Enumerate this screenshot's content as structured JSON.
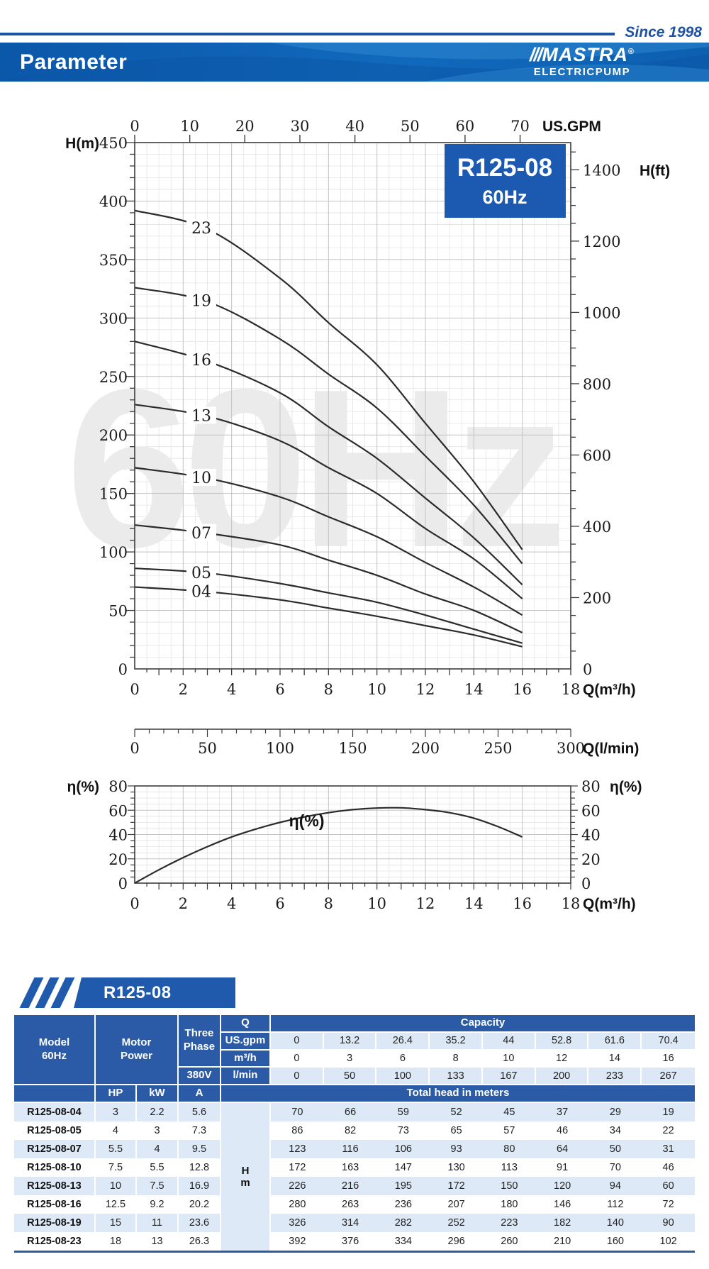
{
  "header": {
    "since": "Since 1998",
    "page_title": "Parameter",
    "brand_slashes": "///",
    "brand_name": "MASTRA",
    "registered": "®",
    "brand_sub": "ELECTRICPUMP"
  },
  "colors": {
    "accent_blue": "#1d52a5",
    "banner_blue": "#1169bd",
    "badge_blue": "#1c5ab2",
    "table_header_blue": "#2b5aa7",
    "table_banner_blue": "#1f5aad",
    "row_light_blue": "#dde9f6",
    "watermark_gray": "#ebebeb"
  },
  "chart_data": [
    {
      "type": "line",
      "title": "R125-08 60Hz head curves",
      "badge": {
        "line1": "R125-08",
        "line2": "60Hz"
      },
      "watermark": "60Hz",
      "x": [
        0,
        3,
        6,
        8,
        10,
        12,
        14,
        16
      ],
      "series": [
        {
          "name": "23",
          "values": [
            392,
            376,
            334,
            296,
            260,
            210,
            160,
            102
          ]
        },
        {
          "name": "19",
          "values": [
            326,
            314,
            282,
            252,
            223,
            182,
            140,
            90
          ]
        },
        {
          "name": "16",
          "values": [
            280,
            263,
            236,
            207,
            180,
            146,
            112,
            72
          ]
        },
        {
          "name": "13",
          "values": [
            226,
            216,
            195,
            172,
            150,
            120,
            94,
            60
          ]
        },
        {
          "name": "10",
          "values": [
            172,
            163,
            147,
            130,
            113,
            91,
            70,
            46
          ]
        },
        {
          "name": "07",
          "values": [
            123,
            116,
            106,
            93,
            80,
            64,
            50,
            31
          ]
        },
        {
          "name": "05",
          "values": [
            86,
            82,
            73,
            65,
            57,
            46,
            34,
            22
          ]
        },
        {
          "name": "04",
          "values": [
            70,
            66,
            59,
            52,
            45,
            37,
            29,
            19
          ]
        }
      ],
      "curve_label_x": 2.75,
      "xlim": [
        0,
        18
      ],
      "ylim": [
        0,
        450
      ],
      "xlabel": "Q(m³/h)",
      "xticks": [
        0,
        2,
        4,
        6,
        8,
        10,
        12,
        14,
        16,
        18
      ],
      "ylabel_left": "H(m)",
      "left_ticks": [
        0,
        50,
        100,
        150,
        200,
        250,
        300,
        350,
        400,
        450
      ],
      "ylabel_right": "H(ft)",
      "right_axis": {
        "label": "H(ft)",
        "max": 1400,
        "label_step": 200,
        "m_per_ft": 0.3048
      },
      "top_axis": {
        "label": "US.GPM",
        "ticks": [
          0,
          10,
          20,
          30,
          40,
          50,
          60,
          70
        ],
        "m3h_per_gpm": 0.22727
      },
      "grid": true
    },
    {
      "type": "line",
      "title": "Efficiency curve",
      "curve_label": "η(%)",
      "x": [
        0,
        1,
        2,
        3,
        4,
        5,
        6,
        7,
        8,
        9,
        10,
        11,
        12,
        13,
        14,
        15,
        16
      ],
      "values": [
        0,
        11,
        21,
        30,
        38,
        44.5,
        50,
        54.5,
        58,
        60.5,
        61.8,
        62,
        60.5,
        58,
        53.5,
        46.5,
        38
      ],
      "xlim": [
        0,
        18
      ],
      "ylim": [
        0,
        80
      ],
      "xlabel": "Q(m³/h)",
      "xticks": [
        0,
        2,
        4,
        6,
        8,
        10,
        12,
        14,
        16,
        18
      ],
      "ylabel": "η(%)",
      "yticks": [
        0,
        20,
        40,
        60,
        80
      ],
      "grid": true
    }
  ],
  "lmin_axis": {
    "label": "Q(l/min)",
    "max": 300,
    "ticks": [
      0,
      50,
      100,
      150,
      200,
      250,
      300
    ]
  },
  "table": {
    "banner": "R125-08",
    "hm": {
      "l1": "H",
      "l2": "m"
    },
    "header": {
      "model_l1": "Model",
      "model_l2": "60Hz",
      "motor_l1": "Motor",
      "motor_l2": "Power",
      "three_l1": "Three",
      "three_l2": "Phase",
      "volt": "380V",
      "q": "Q",
      "capacity": "Capacity",
      "q_rows": [
        {
          "unit": "US.gpm",
          "values": [
            "0",
            "13.2",
            "26.4",
            "35.2",
            "44",
            "52.8",
            "61.6",
            "70.4"
          ]
        },
        {
          "unit": "m³/h",
          "values": [
            "0",
            "3",
            "6",
            "8",
            "10",
            "12",
            "14",
            "16"
          ]
        },
        {
          "unit": "l/min",
          "values": [
            "0",
            "50",
            "100",
            "133",
            "167",
            "200",
            "233",
            "267"
          ]
        }
      ],
      "hp": "HP",
      "kw": "kW",
      "a": "A",
      "total_head": "Total head in meters"
    },
    "rows": [
      {
        "model": "R125-08-04",
        "hp": "3",
        "kw": "2.2",
        "a": "5.6",
        "heads": [
          "70",
          "66",
          "59",
          "52",
          "45",
          "37",
          "29",
          "19"
        ]
      },
      {
        "model": "R125-08-05",
        "hp": "4",
        "kw": "3",
        "a": "7.3",
        "heads": [
          "86",
          "82",
          "73",
          "65",
          "57",
          "46",
          "34",
          "22"
        ]
      },
      {
        "model": "R125-08-07",
        "hp": "5.5",
        "kw": "4",
        "a": "9.5",
        "heads": [
          "123",
          "116",
          "106",
          "93",
          "80",
          "64",
          "50",
          "31"
        ]
      },
      {
        "model": "R125-08-10",
        "hp": "7.5",
        "kw": "5.5",
        "a": "12.8",
        "heads": [
          "172",
          "163",
          "147",
          "130",
          "113",
          "91",
          "70",
          "46"
        ]
      },
      {
        "model": "R125-08-13",
        "hp": "10",
        "kw": "7.5",
        "a": "16.9",
        "heads": [
          "226",
          "216",
          "195",
          "172",
          "150",
          "120",
          "94",
          "60"
        ]
      },
      {
        "model": "R125-08-16",
        "hp": "12.5",
        "kw": "9.2",
        "a": "20.2",
        "heads": [
          "280",
          "263",
          "236",
          "207",
          "180",
          "146",
          "112",
          "72"
        ]
      },
      {
        "model": "R125-08-19",
        "hp": "15",
        "kw": "11",
        "a": "23.6",
        "heads": [
          "326",
          "314",
          "282",
          "252",
          "223",
          "182",
          "140",
          "90"
        ]
      },
      {
        "model": "R125-08-23",
        "hp": "18",
        "kw": "13",
        "a": "26.3",
        "heads": [
          "392",
          "376",
          "334",
          "296",
          "260",
          "210",
          "160",
          "102"
        ]
      }
    ]
  }
}
